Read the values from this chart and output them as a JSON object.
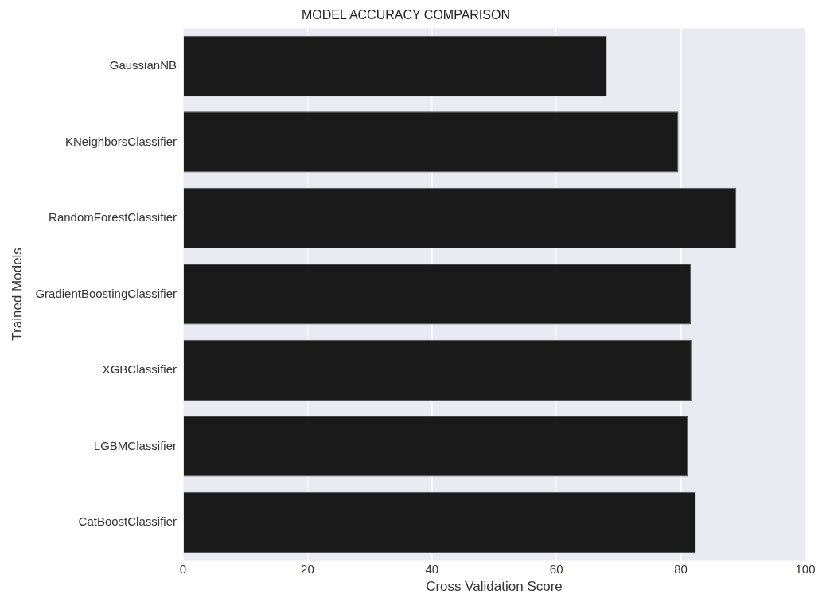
{
  "chart_data": {
    "type": "bar",
    "orientation": "horizontal",
    "title": "MODEL ACCURACY COMPARISON",
    "xlabel": "Cross Validation Score",
    "ylabel": "Trained Models",
    "categories": [
      "GaussianNB",
      "KNeighborsClassifier",
      "RandomForestClassifier",
      "GradientBoostingClassifier",
      "XGBClassifier",
      "LGBMClassifier",
      "CatBoostClassifier"
    ],
    "values": [
      68.1,
      79.6,
      88.9,
      81.6,
      81.7,
      81.1,
      82.4
    ],
    "color": "#1a1a1a",
    "xlim": [
      0,
      100
    ],
    "xticks": [
      0,
      20,
      40,
      60,
      80,
      100
    ],
    "grid": "x",
    "legend": false
  }
}
